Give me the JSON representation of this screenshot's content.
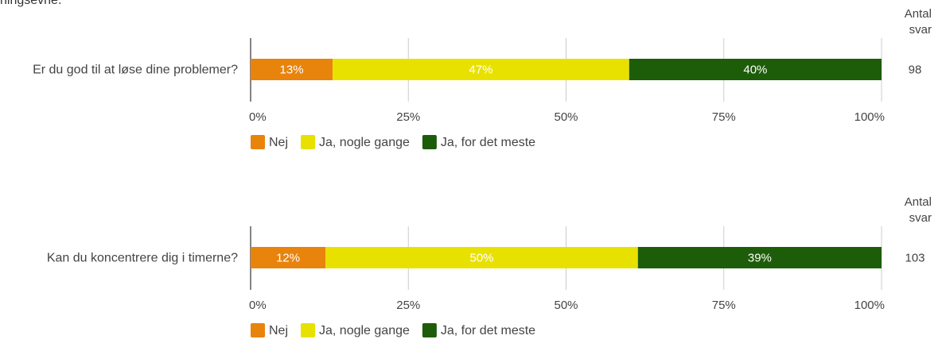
{
  "page": {
    "top_caption": "ningsevne."
  },
  "chart_data": [
    {
      "type": "bar",
      "orientation": "horizontal",
      "stacked": true,
      "categories": [
        "Er du god til at løse dine problemer?"
      ],
      "series": [
        {
          "name": "Nej",
          "values": [
            13
          ],
          "color": "#E8830C"
        },
        {
          "name": "Ja, nogle gange",
          "values": [
            47
          ],
          "color": "#E8E100"
        },
        {
          "name": "Ja, for det meste",
          "values": [
            40
          ],
          "color": "#1D5D09"
        }
      ],
      "data_labels": [
        "13%",
        "47%",
        "40%"
      ],
      "xlim": [
        0,
        100
      ],
      "x_ticks": [
        "0%",
        "25%",
        "50%",
        "75%",
        "100%"
      ],
      "x_tick_values": [
        0,
        25,
        50,
        75,
        100
      ],
      "count_header": [
        "Antal",
        "svar"
      ],
      "counts": [
        "98"
      ],
      "grid": true,
      "legend_position": "bottom-left"
    },
    {
      "type": "bar",
      "orientation": "horizontal",
      "stacked": true,
      "categories": [
        "Kan du koncentrere dig i timerne?"
      ],
      "series": [
        {
          "name": "Nej",
          "values": [
            12
          ],
          "color": "#E8830C"
        },
        {
          "name": "Ja, nogle gange",
          "values": [
            50
          ],
          "color": "#E8E100"
        },
        {
          "name": "Ja, for det meste",
          "values": [
            39
          ],
          "color": "#1D5D09"
        }
      ],
      "data_labels": [
        "12%",
        "50%",
        "39%"
      ],
      "xlim": [
        0,
        100
      ],
      "x_ticks": [
        "0%",
        "25%",
        "50%",
        "75%",
        "100%"
      ],
      "x_tick_values": [
        0,
        25,
        50,
        75,
        100
      ],
      "count_header": [
        "Antal",
        "svar"
      ],
      "counts": [
        "103"
      ],
      "grid": true,
      "legend_position": "bottom-left"
    }
  ]
}
